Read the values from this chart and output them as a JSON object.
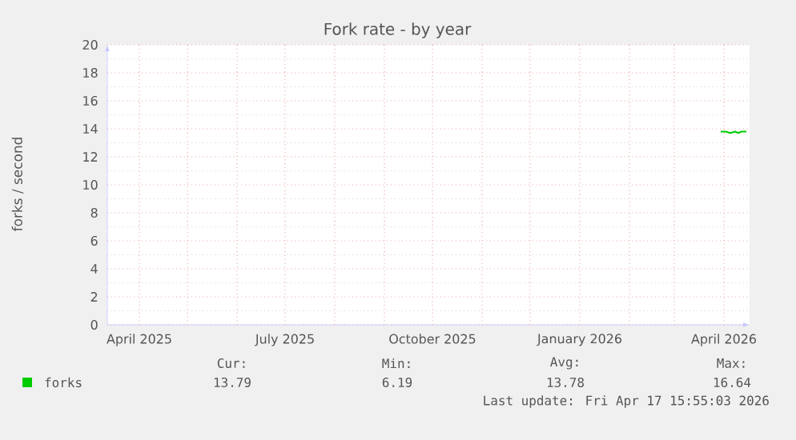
{
  "chart_data": {
    "type": "line",
    "title": "Fork rate - by year",
    "ylabel": "forks / second",
    "xlim": [
      "2025-03-12",
      "2026-04-17"
    ],
    "xticks": [
      {
        "value": "2025-04-01",
        "label": "April 2025"
      },
      {
        "value": "2025-05-01",
        "label": null
      },
      {
        "value": "2025-06-01",
        "label": null
      },
      {
        "value": "2025-07-01",
        "label": "July 2025"
      },
      {
        "value": "2025-08-01",
        "label": null
      },
      {
        "value": "2025-09-01",
        "label": null
      },
      {
        "value": "2025-10-01",
        "label": "October 2025"
      },
      {
        "value": "2025-11-01",
        "label": null
      },
      {
        "value": "2025-12-01",
        "label": null
      },
      {
        "value": "2026-01-01",
        "label": "January 2026"
      },
      {
        "value": "2026-02-01",
        "label": null
      },
      {
        "value": "2026-03-01",
        "label": null
      },
      {
        "value": "2026-04-01",
        "label": "April 2026"
      }
    ],
    "ylim": [
      0,
      20
    ],
    "yticks": [
      0,
      2,
      4,
      6,
      8,
      10,
      12,
      14,
      16,
      18,
      20
    ],
    "grid": true,
    "legend": "bottom left",
    "series": [
      {
        "name": "forks",
        "color": "#00cc00",
        "x": [
          "2026-03-30",
          "2026-04-02",
          "2026-04-05",
          "2026-04-08",
          "2026-04-10",
          "2026-04-12",
          "2026-04-15"
        ],
        "values": [
          13.8,
          13.8,
          13.7,
          13.8,
          13.7,
          13.8,
          13.8
        ]
      }
    ],
    "annotations": [
      "Cur:",
      "Min:",
      "Avg:",
      "Max:",
      "13.79",
      "6.19",
      "13.78",
      "16.64",
      "Last update: Fri Apr 17 15:55:03 2026"
    ]
  }
}
